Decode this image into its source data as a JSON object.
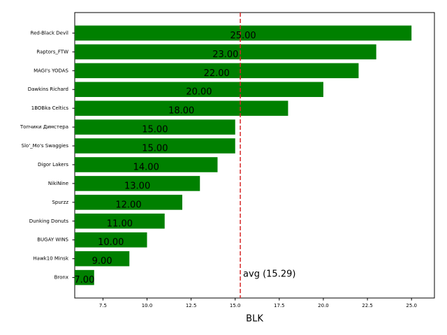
{
  "chart_data": {
    "type": "barh",
    "categories": [
      "Red-Black Devil",
      "Raptors_FTW",
      "MAGI's YODAS",
      "Dawkins Richard",
      "1BOBka Celtics",
      "Топчики Димстера",
      "Slo'_Mo's Swaggies",
      "Digor Lakers",
      "NikiNine",
      "Spurzz",
      "Dunking Donuts",
      "BUGAY WINS",
      "Hawk10 Minsk",
      "Bronx"
    ],
    "values": [
      25,
      23,
      22,
      20,
      18,
      15,
      15,
      14,
      13,
      12,
      11,
      10,
      9,
      7
    ],
    "value_labels": [
      "25.00",
      "23.00",
      "22.00",
      "20.00",
      "18.00",
      "15.00",
      "15.00",
      "14.00",
      "13.00",
      "12.00",
      "11.00",
      "10.00",
      "9.00",
      "7.00"
    ],
    "color": "#008000",
    "xlabel": "BLK",
    "xlim": [
      5.9,
      26.3
    ],
    "xticks": [
      7.5,
      {
        "value": 10,
        "label": "10.0"
      },
      12.5,
      {
        "value": 15,
        "label": "15.0"
      },
      17.5,
      {
        "value": 20,
        "label": "20.0"
      },
      22.5,
      {
        "value": 25,
        "label": "25.0"
      }
    ],
    "avg_line": {
      "value": 15.29,
      "label": "avg (15.29)",
      "color": "#d62728"
    }
  }
}
